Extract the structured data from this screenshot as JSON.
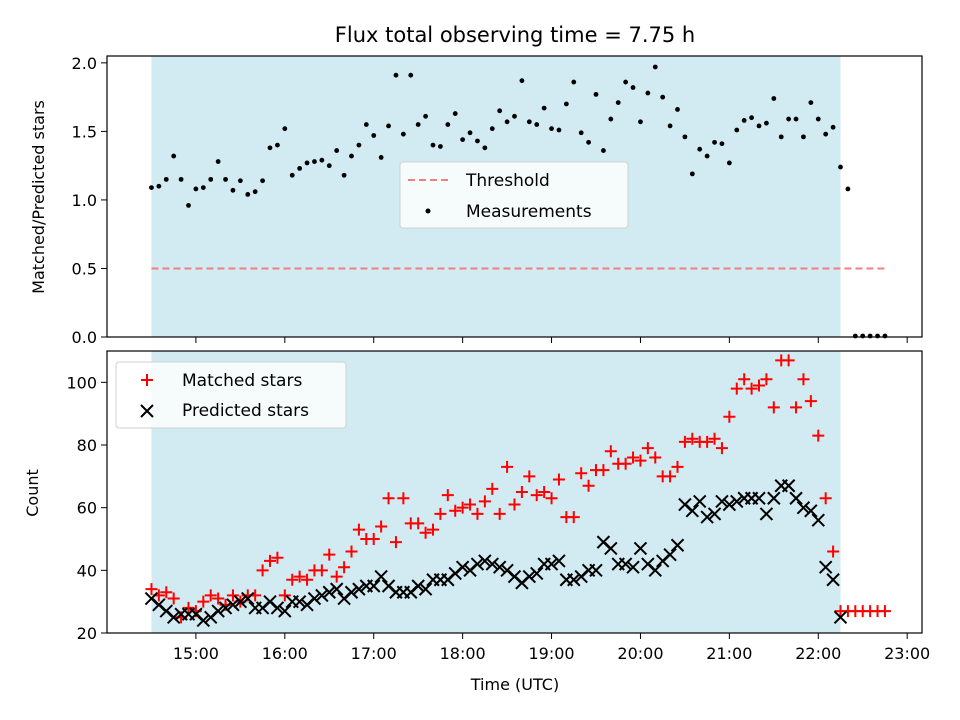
{
  "title": "Flux total observing time = 7.75 h",
  "colors": {
    "shade": "#add8e6",
    "threshold": "#f08080",
    "measure": "#000000",
    "matched": "#ff0000",
    "predicted": "#000000"
  },
  "chart_data": [
    {
      "type": "scatter",
      "ylabel": "Matched/Predicted stars",
      "ylim": [
        0,
        2.05
      ],
      "yticks": [
        "0.0",
        "0.5",
        "1.0",
        "1.5",
        "2.0"
      ],
      "shaded_interval": [
        "14:30",
        "22:15"
      ],
      "threshold": {
        "name": "Threshold",
        "value": 0.5,
        "x_range": [
          "14:30",
          "22:45"
        ]
      },
      "legend": {
        "placement": "center",
        "entries": [
          "Threshold",
          "Measurements"
        ]
      },
      "series": [
        {
          "name": "Measurements",
          "x": [
            "14:30",
            "14:35",
            "14:40",
            "14:45",
            "14:50",
            "14:55",
            "15:00",
            "15:05",
            "15:10",
            "15:15",
            "15:20",
            "15:25",
            "15:30",
            "15:35",
            "15:40",
            "15:45",
            "15:50",
            "15:55",
            "16:00",
            "16:05",
            "16:10",
            "16:15",
            "16:20",
            "16:25",
            "16:30",
            "16:35",
            "16:40",
            "16:45",
            "16:50",
            "16:55",
            "17:00",
            "17:05",
            "17:10",
            "17:15",
            "17:20",
            "17:25",
            "17:30",
            "17:35",
            "17:40",
            "17:45",
            "17:50",
            "17:55",
            "18:00",
            "18:05",
            "18:10",
            "18:15",
            "18:20",
            "18:25",
            "18:30",
            "18:35",
            "18:40",
            "18:45",
            "18:50",
            "18:55",
            "19:00",
            "19:05",
            "19:10",
            "19:15",
            "19:20",
            "19:25",
            "19:30",
            "19:35",
            "19:40",
            "19:45",
            "19:50",
            "19:55",
            "20:00",
            "20:05",
            "20:10",
            "20:15",
            "20:20",
            "20:25",
            "20:30",
            "20:35",
            "20:40",
            "20:45",
            "20:50",
            "20:55",
            "21:00",
            "21:05",
            "21:10",
            "21:15",
            "21:20",
            "21:25",
            "21:30",
            "21:35",
            "21:40",
            "21:45",
            "21:50",
            "21:55",
            "22:00",
            "22:05",
            "22:10",
            "22:15",
            "22:20",
            "22:25",
            "22:30",
            "22:35",
            "22:40",
            "22:45"
          ],
          "y": [
            1.09,
            1.1,
            1.15,
            1.32,
            1.15,
            0.96,
            1.08,
            1.09,
            1.15,
            1.28,
            1.15,
            1.07,
            1.14,
            1.04,
            1.06,
            1.14,
            1.38,
            1.4,
            1.52,
            1.18,
            1.23,
            1.27,
            1.28,
            1.29,
            1.25,
            1.36,
            1.18,
            1.32,
            1.4,
            1.55,
            1.47,
            1.31,
            1.54,
            1.91,
            1.48,
            1.91,
            1.55,
            1.61,
            1.4,
            1.39,
            1.55,
            1.63,
            1.44,
            1.49,
            1.43,
            1.38,
            1.52,
            1.65,
            1.57,
            1.61,
            1.87,
            1.57,
            1.55,
            1.67,
            1.52,
            1.51,
            1.7,
            1.86,
            1.49,
            1.42,
            1.77,
            1.36,
            1.59,
            1.71,
            1.86,
            1.82,
            1.57,
            1.78,
            1.97,
            1.75,
            1.54,
            1.66,
            1.46,
            1.19,
            1.37,
            1.32,
            1.42,
            1.41,
            1.27,
            1.51,
            1.58,
            1.6,
            1.54,
            1.56,
            1.74,
            1.46,
            1.59,
            1.59,
            1.46,
            1.71,
            1.59,
            1.48,
            1.53,
            1.24,
            1.08,
            0,
            0,
            0,
            0,
            0
          ]
        }
      ]
    },
    {
      "type": "scatter",
      "xlabel": "Time (UTC)",
      "ylabel": "Count",
      "ylim": [
        20,
        110
      ],
      "xlim": [
        "14:00",
        "23:10"
      ],
      "yticks": [
        "20",
        "40",
        "60",
        "80",
        "100"
      ],
      "xticks": [
        "15:00",
        "16:00",
        "17:00",
        "18:00",
        "19:00",
        "20:00",
        "21:00",
        "22:00",
        "23:00"
      ],
      "shaded_interval": [
        "14:30",
        "22:15"
      ],
      "legend": {
        "placement": "upper left",
        "entries": [
          "Matched stars",
          "Predicted stars"
        ]
      },
      "series": [
        {
          "name": "Matched stars",
          "marker": "+",
          "x": [
            "14:30",
            "14:35",
            "14:40",
            "14:45",
            "14:50",
            "14:55",
            "15:00",
            "15:05",
            "15:10",
            "15:15",
            "15:20",
            "15:25",
            "15:30",
            "15:35",
            "15:40",
            "15:45",
            "15:50",
            "15:55",
            "16:00",
            "16:05",
            "16:10",
            "16:15",
            "16:20",
            "16:25",
            "16:30",
            "16:35",
            "16:40",
            "16:45",
            "16:50",
            "16:55",
            "17:00",
            "17:05",
            "17:10",
            "17:15",
            "17:20",
            "17:25",
            "17:30",
            "17:35",
            "17:40",
            "17:45",
            "17:50",
            "17:55",
            "18:00",
            "18:05",
            "18:10",
            "18:15",
            "18:20",
            "18:25",
            "18:30",
            "18:35",
            "18:40",
            "18:45",
            "18:50",
            "18:55",
            "19:00",
            "19:05",
            "19:10",
            "19:15",
            "19:20",
            "19:25",
            "19:30",
            "19:35",
            "19:40",
            "19:45",
            "19:50",
            "19:55",
            "20:00",
            "20:05",
            "20:10",
            "20:15",
            "20:20",
            "20:25",
            "20:30",
            "20:35",
            "20:40",
            "20:45",
            "20:50",
            "20:55",
            "21:00",
            "21:05",
            "21:10",
            "21:15",
            "21:20",
            "21:25",
            "21:30",
            "21:35",
            "21:40",
            "21:45",
            "21:50",
            "21:55",
            "22:00",
            "22:05",
            "22:10",
            "22:15",
            "22:20",
            "22:25",
            "22:30",
            "22:35",
            "22:40",
            "22:45"
          ],
          "y": [
            34,
            32,
            33,
            31,
            25,
            28,
            27,
            30,
            32,
            31,
            29,
            32,
            30,
            32,
            32,
            40,
            43,
            44,
            32,
            37,
            38,
            37,
            40,
            40,
            45,
            38,
            41,
            46,
            53,
            50,
            50,
            54,
            63,
            49,
            63,
            55,
            55,
            52,
            53,
            58,
            64,
            59,
            60,
            61,
            58,
            62,
            66,
            58,
            73,
            61,
            65,
            70,
            64,
            65,
            63,
            69,
            57,
            57,
            71,
            67,
            72,
            72,
            78,
            74,
            74,
            76,
            75,
            79,
            76,
            70,
            70,
            73,
            81,
            82,
            81,
            81,
            82,
            79,
            89,
            98,
            101,
            98,
            99,
            101,
            92,
            107,
            107,
            92,
            101,
            94,
            83,
            63,
            46,
            27,
            27,
            27,
            27,
            27,
            27,
            27
          ]
        },
        {
          "name": "Predicted stars",
          "marker": "x",
          "x": [
            "14:30",
            "14:35",
            "14:40",
            "14:45",
            "14:50",
            "14:55",
            "15:00",
            "15:05",
            "15:10",
            "15:15",
            "15:20",
            "15:25",
            "15:30",
            "15:35",
            "15:40",
            "15:45",
            "15:50",
            "15:55",
            "16:00",
            "16:05",
            "16:10",
            "16:15",
            "16:20",
            "16:25",
            "16:30",
            "16:35",
            "16:40",
            "16:45",
            "16:50",
            "16:55",
            "17:00",
            "17:05",
            "17:10",
            "17:15",
            "17:20",
            "17:25",
            "17:30",
            "17:35",
            "17:40",
            "17:45",
            "17:50",
            "17:55",
            "18:00",
            "18:05",
            "18:10",
            "18:15",
            "18:20",
            "18:25",
            "18:30",
            "18:35",
            "18:40",
            "18:45",
            "18:50",
            "18:55",
            "19:00",
            "19:05",
            "19:10",
            "19:15",
            "19:20",
            "19:25",
            "19:30",
            "19:35",
            "19:40",
            "19:45",
            "19:50",
            "19:55",
            "20:00",
            "20:05",
            "20:10",
            "20:15",
            "20:20",
            "20:25",
            "20:30",
            "20:35",
            "20:40",
            "20:45",
            "20:50",
            "20:55",
            "21:00",
            "21:05",
            "21:10",
            "21:15",
            "21:20",
            "21:25",
            "21:30",
            "21:35",
            "21:40",
            "21:45",
            "21:50",
            "21:55",
            "22:00",
            "22:05",
            "22:10",
            "22:15"
          ],
          "y": [
            31,
            29,
            27,
            25,
            26,
            26,
            26,
            24,
            25,
            27,
            28,
            29,
            30,
            31,
            28,
            28,
            30,
            28,
            27,
            30,
            30,
            29,
            31,
            32,
            33,
            34,
            31,
            33,
            34,
            35,
            35,
            38,
            35,
            33,
            33,
            33,
            35,
            34,
            37,
            37,
            37,
            39,
            41,
            40,
            42,
            43,
            42,
            41,
            40,
            38,
            36,
            38,
            39,
            42,
            42,
            43,
            37,
            37,
            38,
            40,
            40,
            49,
            47,
            42,
            42,
            41,
            47,
            42,
            40,
            43,
            45,
            48,
            61,
            59,
            62,
            57,
            58,
            62,
            61,
            62,
            63,
            63,
            63,
            58,
            63,
            67,
            67,
            63,
            60,
            59,
            56,
            41,
            37,
            25
          ]
        }
      ]
    }
  ]
}
